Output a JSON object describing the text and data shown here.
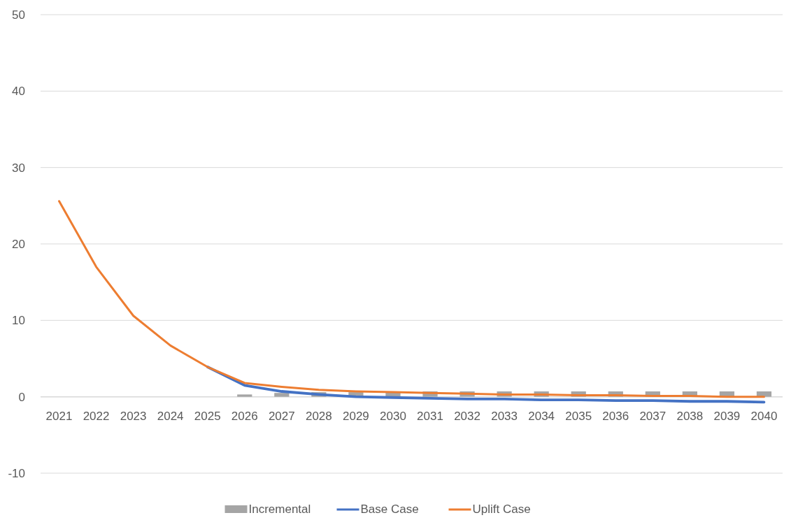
{
  "chart_data": {
    "type": "line",
    "categories": [
      "2021",
      "2022",
      "2023",
      "2024",
      "2025",
      "2026",
      "2027",
      "2028",
      "2029",
      "2030",
      "2031",
      "2032",
      "2033",
      "2034",
      "2035",
      "2036",
      "2037",
      "2038",
      "2039",
      "2040"
    ],
    "series": [
      {
        "name": "Incremental",
        "type": "bar",
        "color": "#a5a5a5",
        "values": [
          0,
          0,
          0,
          0,
          0,
          0.3,
          0.5,
          0.6,
          0.6,
          0.7,
          0.7,
          0.7,
          0.7,
          0.7,
          0.7,
          0.7,
          0.7,
          0.7,
          0.7,
          0.7
        ]
      },
      {
        "name": "Base Case",
        "color": "#4472c4",
        "values": [
          null,
          null,
          null,
          null,
          3.9,
          1.5,
          0.7,
          0.3,
          0.0,
          -0.1,
          -0.2,
          -0.3,
          -0.3,
          -0.4,
          -0.4,
          -0.5,
          -0.5,
          -0.6,
          -0.6,
          -0.7
        ]
      },
      {
        "name": "Uplift Case",
        "color": "#ed7d31",
        "values": [
          25.6,
          17.0,
          10.6,
          6.7,
          3.9,
          1.8,
          1.3,
          0.9,
          0.7,
          0.6,
          0.5,
          0.4,
          0.3,
          0.3,
          0.2,
          0.2,
          0.1,
          0.1,
          0.0,
          0.0
        ]
      }
    ],
    "ylim": [
      -10,
      50
    ],
    "yticks": [
      -10,
      0,
      10,
      20,
      30,
      40,
      50
    ],
    "grid": "y",
    "legend": "bottom"
  }
}
